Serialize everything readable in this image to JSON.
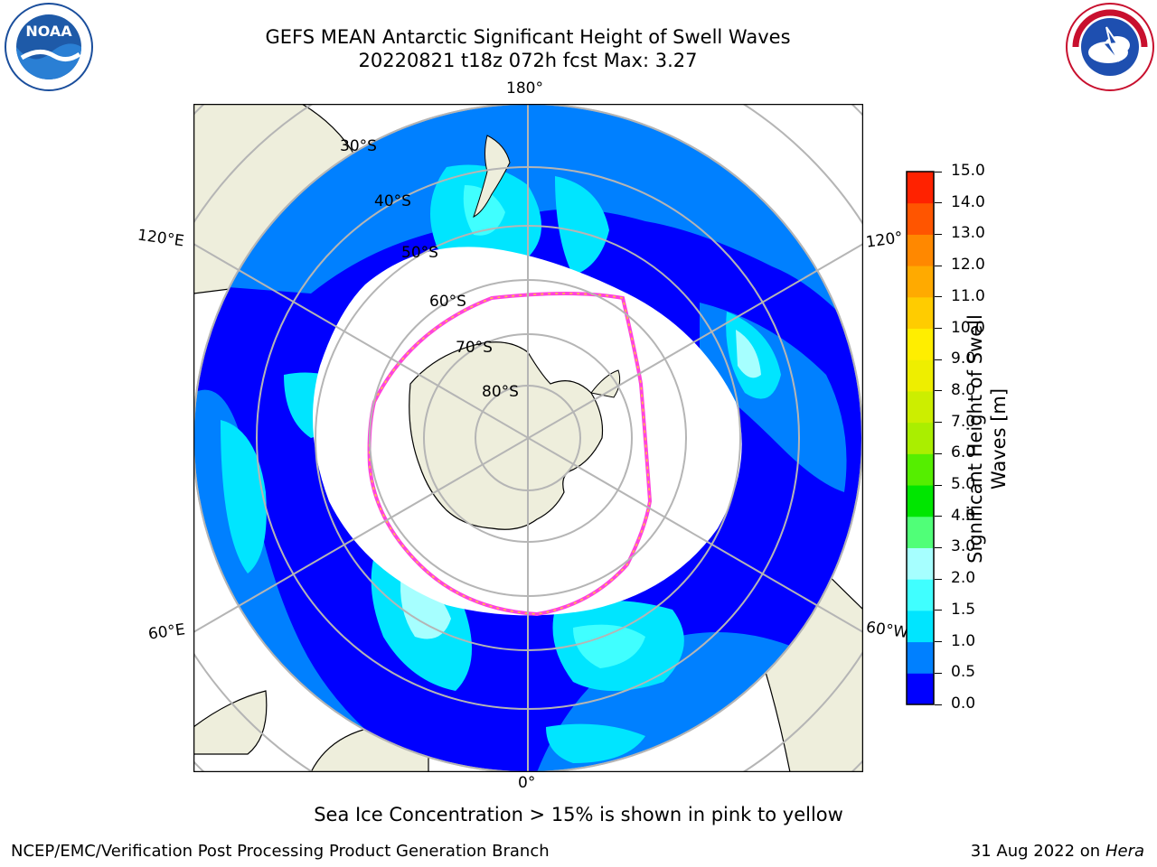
{
  "header": {
    "title_line1": "GEFS MEAN Antarctic Significant Height of Swell Waves",
    "title_line2": "20220821 t18z 072h fcst   Max: 3.27"
  },
  "logos": {
    "noaa_text": "NOAA",
    "noaa_ring": "NATIONAL OCEANIC AND ATMOSPHERIC ADMINISTRATION · U.S. DEPARTMENT OF COMMERCE",
    "nws_ring": "NATIONAL WEATHER SERVICE"
  },
  "map": {
    "lon_labels": {
      "top": "180°",
      "bottom": "0°",
      "left_upper": "120°E",
      "left_lower": "60°E",
      "right_upper": "120°",
      "right_lower": "60°W"
    },
    "lat_labels": [
      "30°S",
      "40°S",
      "50°S",
      "60°S",
      "70°S",
      "80°S"
    ],
    "colors": {
      "ocean_low": "#0000ff",
      "land": "#eeeedc",
      "ice": "#ffffff",
      "ice_edge": "#ff44dd"
    }
  },
  "colorbar": {
    "label": "Significant Height of Swell Waves [m]",
    "ticks": [
      "0.0",
      "0.5",
      "1.0",
      "1.5",
      "2.0",
      "3.0",
      "4.0",
      "5.0",
      "6.0",
      "7.0",
      "8.0",
      "9.0",
      "10.0",
      "11.0",
      "12.0",
      "13.0",
      "14.0",
      "15.0"
    ],
    "colors": [
      "#0000ff",
      "#0080ff",
      "#00e5ff",
      "#40ffff",
      "#a6ffff",
      "#50ff78",
      "#00e600",
      "#55ee00",
      "#aaee00",
      "#ccee00",
      "#eeee00",
      "#ffee00",
      "#ffcc00",
      "#ffaa00",
      "#ff8800",
      "#ff5500",
      "#ff2200"
    ]
  },
  "footer": {
    "note": "Sea Ice Concentration > 15% is shown in pink to yellow",
    "credit": "NCEP/EMC/Verification Post Processing Product Generation Branch",
    "date": "31 Aug 2022 on",
    "machine": "Hera"
  }
}
